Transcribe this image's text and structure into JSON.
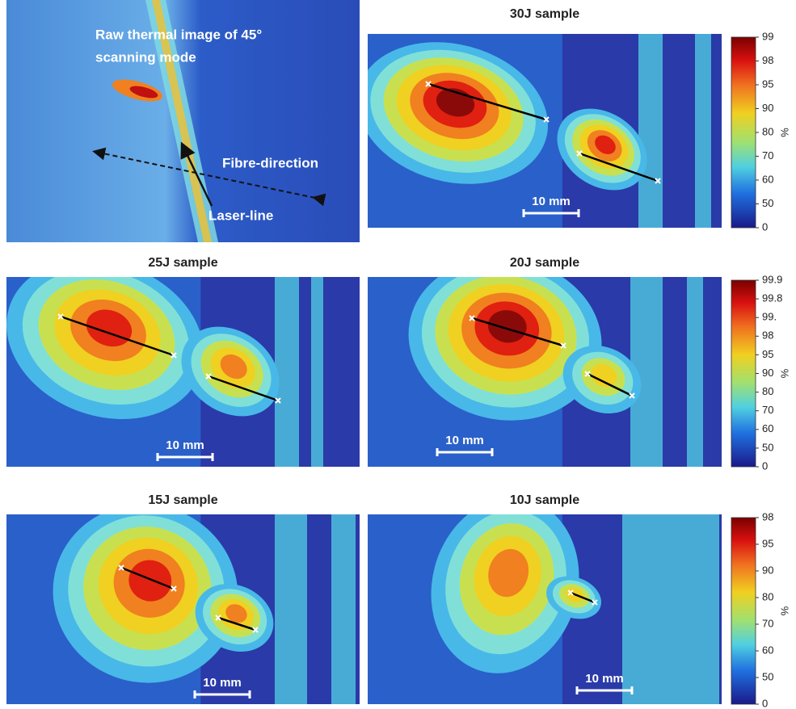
{
  "raw_panel": {
    "caption_lines": [
      "Raw thermal image of 45°",
      "scanning mode"
    ],
    "fibre_label": "Fibre-direction",
    "laser_label": "Laser-line"
  },
  "panels": [
    {
      "title": "30J sample",
      "scale_label": "10 mm",
      "colorbar": {
        "ticks": [
          "99",
          "98",
          "95",
          "90",
          "80",
          "70",
          "60",
          "50",
          "0"
        ],
        "unit": "%"
      }
    },
    {
      "title": "25J sample",
      "scale_label": "10 mm"
    },
    {
      "title": "20J sample",
      "scale_label": "10 mm",
      "colorbar": {
        "ticks": [
          "99.9",
          "99.8",
          "99.",
          "98",
          "95",
          "90",
          "80",
          "70",
          "60",
          "50",
          "0"
        ],
        "unit": "%"
      }
    },
    {
      "title": "15J sample",
      "scale_label": "10 mm"
    },
    {
      "title": "10J sample",
      "scale_label": "10 mm",
      "colorbar": {
        "ticks": [
          "98",
          "95",
          "90",
          "80",
          "70",
          "60",
          "50",
          "0"
        ],
        "unit": "%"
      }
    }
  ]
}
